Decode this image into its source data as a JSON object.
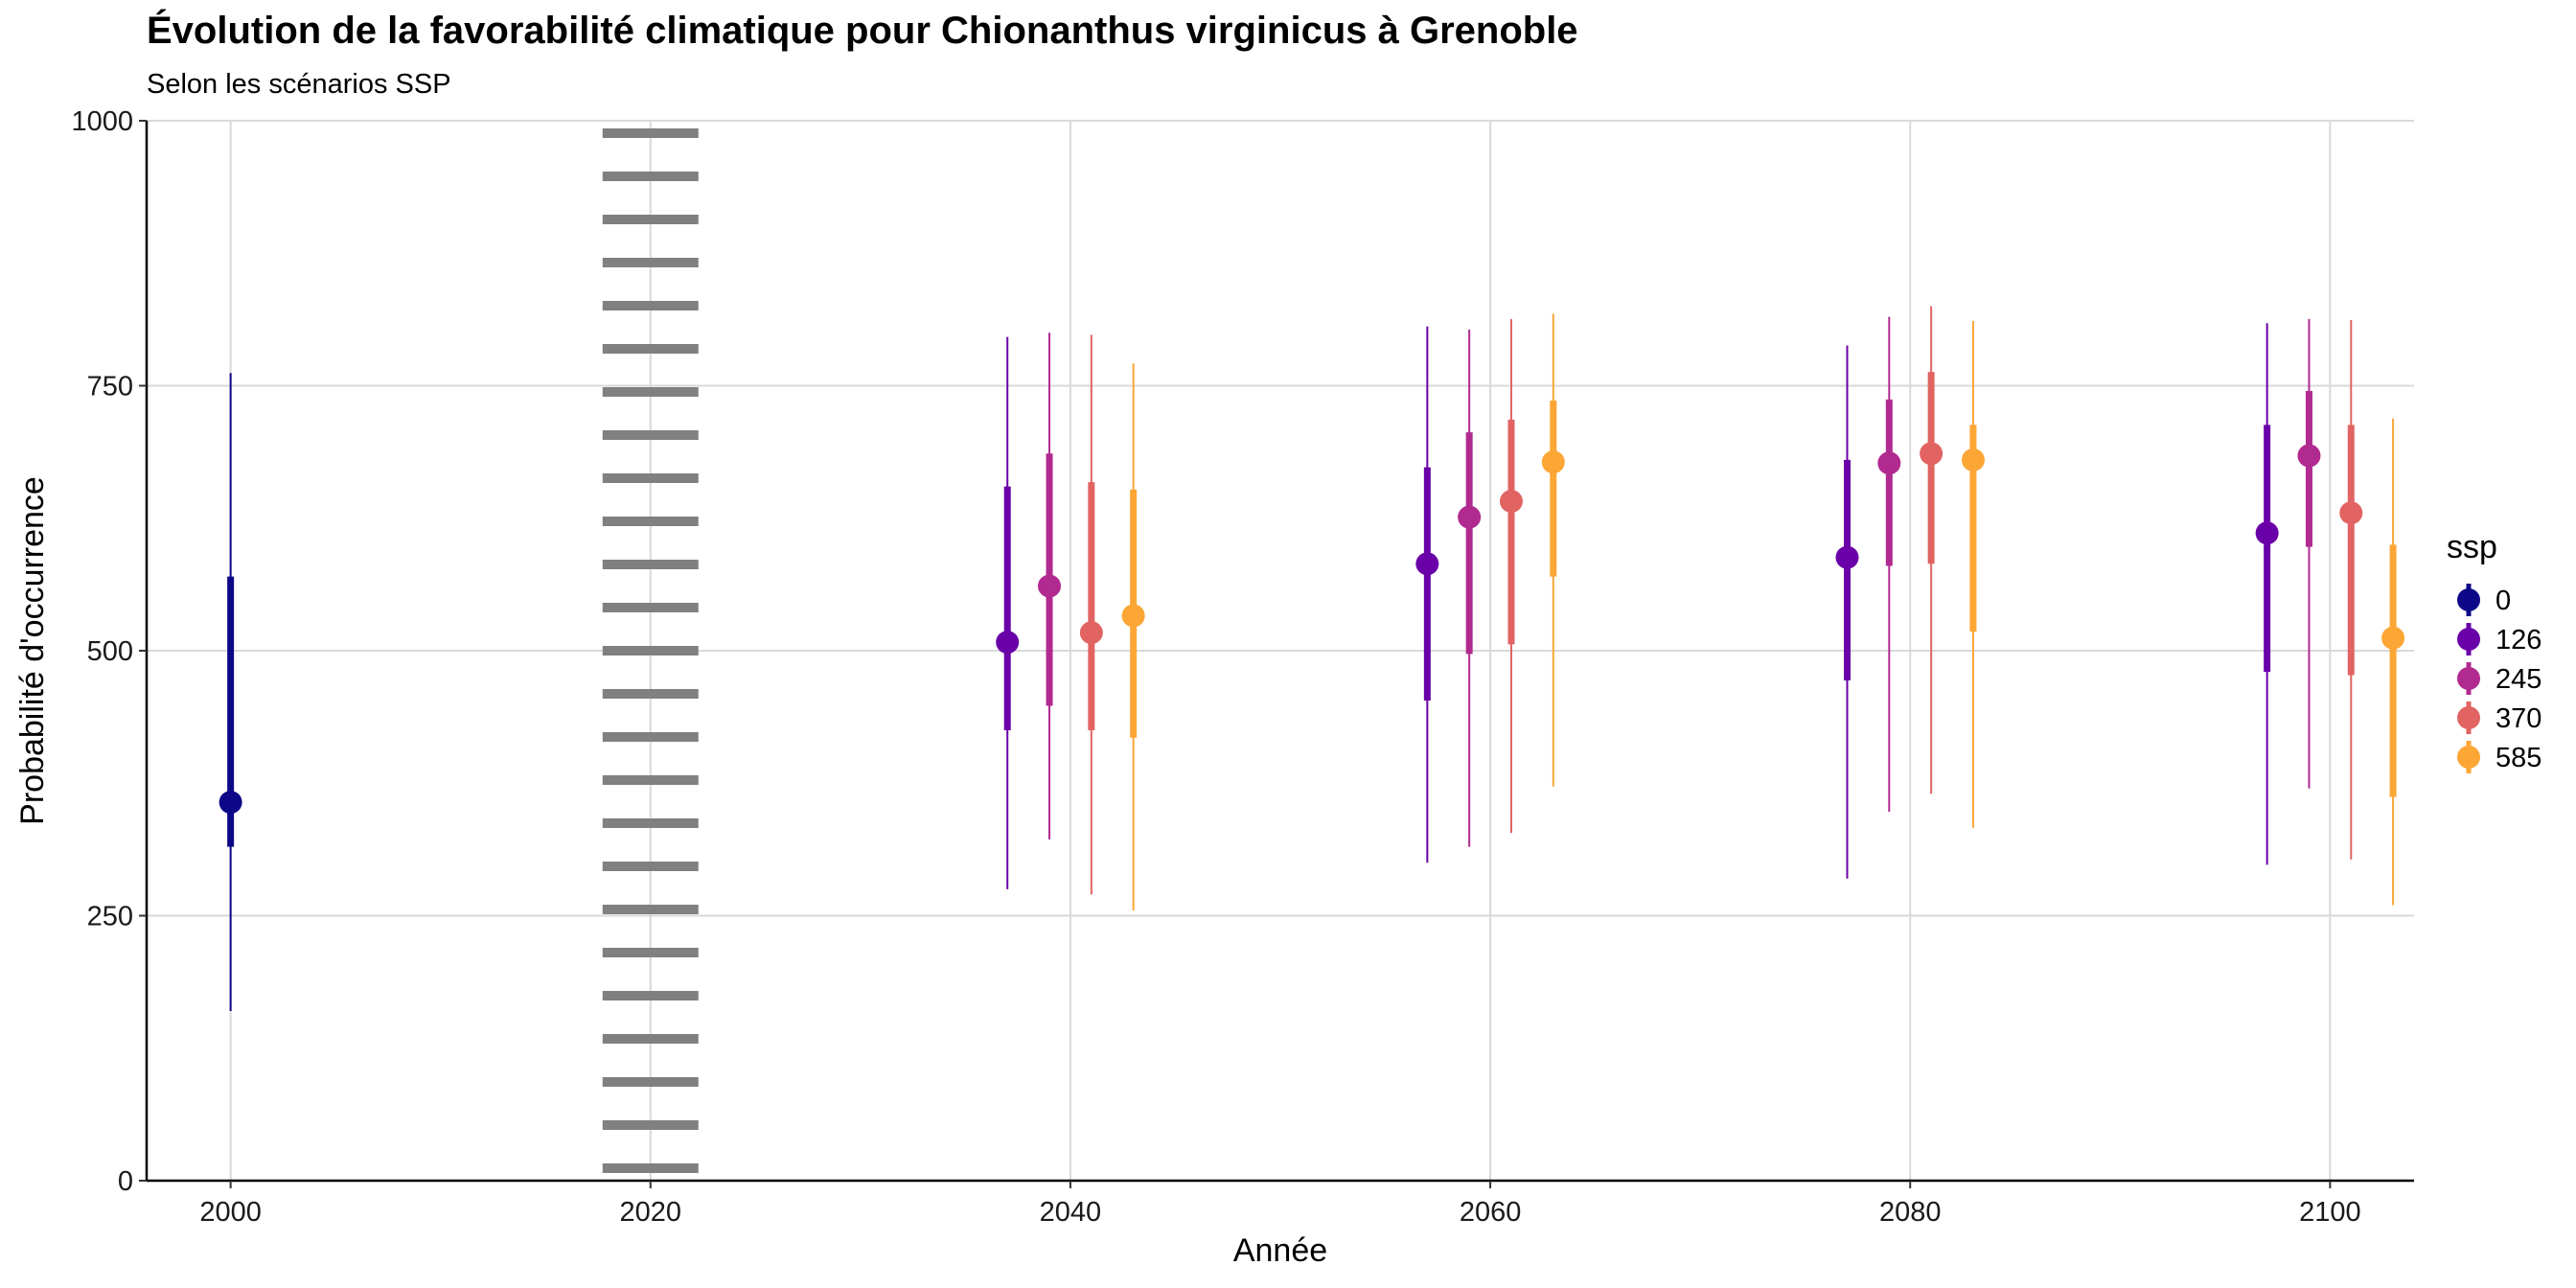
{
  "chart_data": {
    "type": "pointrange",
    "title": "Évolution de la favorabilité climatique pour Chionanthus virginicus à Grenoble",
    "subtitle": "Selon les scénarios SSP",
    "xlabel": "Année",
    "ylabel": "Probabilité d'occurrence",
    "xlim": [
      1996,
      2104
    ],
    "ylim": [
      0,
      1000
    ],
    "x_ticks": [
      2000,
      2020,
      2040,
      2060,
      2080,
      2100
    ],
    "y_ticks": [
      0,
      250,
      500,
      750,
      1000
    ],
    "grid": true,
    "reference_line": {
      "x": 2020,
      "style": "dotted",
      "color": "#808080"
    },
    "legend": {
      "title": "ssp",
      "position": "right"
    },
    "series": [
      {
        "name": "0",
        "color": "#0d0887",
        "points": [
          {
            "x": 2000,
            "y": 357,
            "inner": [
              315,
              570
            ],
            "outer": [
              160,
              762
            ]
          }
        ]
      },
      {
        "name": "126",
        "color": "#6a00a8",
        "points": [
          {
            "x": 2037,
            "y": 508,
            "inner": [
              425,
              655
            ],
            "outer": [
              275,
              796
            ]
          },
          {
            "x": 2057,
            "y": 582,
            "inner": [
              453,
              673
            ],
            "outer": [
              300,
              806
            ]
          },
          {
            "x": 2077,
            "y": 588,
            "inner": [
              472,
              680
            ],
            "outer": [
              285,
              788
            ]
          },
          {
            "x": 2097,
            "y": 611,
            "inner": [
              480,
              713
            ],
            "outer": [
              298,
              809
            ]
          }
        ]
      },
      {
        "name": "245",
        "color": "#b12a90",
        "points": [
          {
            "x": 2039,
            "y": 561,
            "inner": [
              448,
              686
            ],
            "outer": [
              322,
              800
            ]
          },
          {
            "x": 2059,
            "y": 626,
            "inner": [
              497,
              706
            ],
            "outer": [
              315,
              803
            ]
          },
          {
            "x": 2079,
            "y": 677,
            "inner": [
              580,
              737
            ],
            "outer": [
              348,
              815
            ]
          },
          {
            "x": 2099,
            "y": 684,
            "inner": [
              598,
              745
            ],
            "outer": [
              370,
              813
            ]
          }
        ]
      },
      {
        "name": "370",
        "color": "#e16462",
        "points": [
          {
            "x": 2041,
            "y": 517,
            "inner": [
              425,
              659
            ],
            "outer": [
              270,
              798
            ]
          },
          {
            "x": 2061,
            "y": 641,
            "inner": [
              506,
              718
            ],
            "outer": [
              328,
              813
            ]
          },
          {
            "x": 2081,
            "y": 686,
            "inner": [
              582,
              763
            ],
            "outer": [
              365,
              825
            ]
          },
          {
            "x": 2101,
            "y": 630,
            "inner": [
              477,
              713
            ],
            "outer": [
              303,
              812
            ]
          }
        ]
      },
      {
        "name": "585",
        "color": "#fca636",
        "points": [
          {
            "x": 2043,
            "y": 533,
            "inner": [
              418,
              652
            ],
            "outer": [
              255,
              771
            ]
          },
          {
            "x": 2063,
            "y": 678,
            "inner": [
              570,
              736
            ],
            "outer": [
              372,
              818
            ]
          },
          {
            "x": 2083,
            "y": 680,
            "inner": [
              518,
              713
            ],
            "outer": [
              333,
              811
            ]
          },
          {
            "x": 2103,
            "y": 512,
            "inner": [
              362,
              600
            ],
            "outer": [
              260,
              719
            ]
          }
        ]
      }
    ]
  }
}
